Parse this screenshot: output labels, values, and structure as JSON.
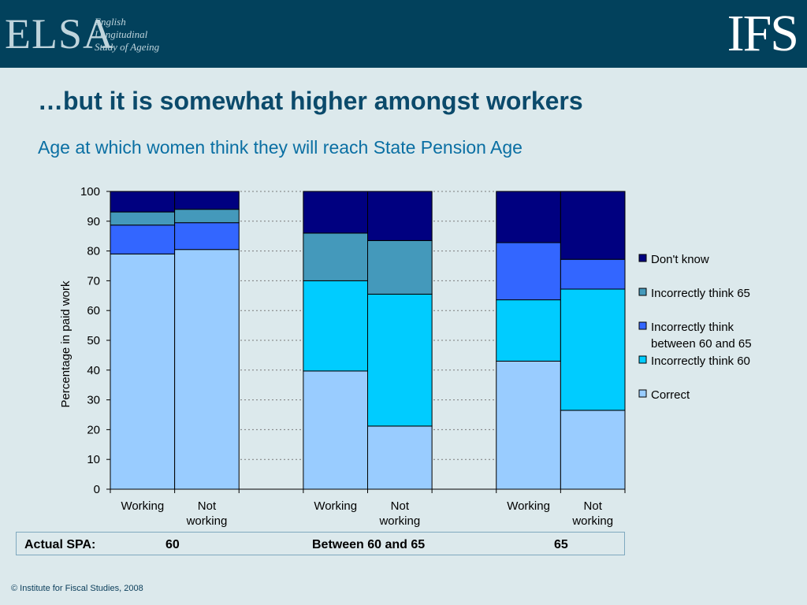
{
  "header": {
    "elsa_logo": "ELSA",
    "elsa_sub_lines": [
      "English",
      "Longitudinal",
      "Study of Ageing"
    ],
    "ifs_logo": "IFS"
  },
  "slide": {
    "title": "…but it is somewhat higher amongst workers",
    "subtitle": "Age at which women think they will reach State Pension Age"
  },
  "spa_row": {
    "label": "Actual SPA:",
    "values": [
      "60",
      "Between 60 and 65",
      "65"
    ]
  },
  "footer": "© Institute for Fiscal Studies, 2008",
  "chart_data": {
    "type": "bar",
    "stacked": true,
    "title": "",
    "xlabel": "",
    "ylabel": "Percentage in paid work",
    "ylim": [
      0,
      100
    ],
    "yticks": [
      0,
      10,
      20,
      30,
      40,
      50,
      60,
      70,
      80,
      90,
      100
    ],
    "grid": true,
    "legend_position": "right",
    "categories": [
      "Working",
      "Not working",
      "Working",
      "Not working",
      "Working",
      "Not working"
    ],
    "category_labels": [
      [
        "Working"
      ],
      [
        "Not",
        "working"
      ],
      [
        "Working"
      ],
      [
        "Not",
        "working"
      ],
      [
        "Working"
      ],
      [
        "Not",
        "working"
      ]
    ],
    "groups": [
      0,
      0,
      1,
      1,
      2,
      2
    ],
    "series": [
      {
        "name": "Correct",
        "color": "#99ccff",
        "values": [
          79,
          80.5,
          39.7,
          21.2,
          43,
          26.5
        ]
      },
      {
        "name": "Incorrectly think 60",
        "color": "#00ccff",
        "values": [
          0,
          0,
          30.3,
          44.3,
          20.6,
          40.7
        ]
      },
      {
        "name": "Incorrectly think between 60 and 65",
        "legend_lines": [
          "Incorrectly think",
          "between 60 and 65"
        ],
        "color": "#3366ff",
        "values": [
          9.7,
          9,
          0,
          0,
          19.2,
          10
        ]
      },
      {
        "name": "Incorrectly think 65",
        "color": "#4499bb",
        "values": [
          4.4,
          4.5,
          16,
          18,
          0,
          0
        ]
      },
      {
        "name": "Don't know",
        "color": "#000080",
        "values": [
          6.9,
          6,
          14,
          16.5,
          17.2,
          22.8
        ]
      }
    ],
    "legend_order": [
      "Don't know",
      "Incorrectly think 65",
      "Incorrectly think between 60 and 65",
      "Incorrectly think 60",
      "Correct"
    ]
  }
}
